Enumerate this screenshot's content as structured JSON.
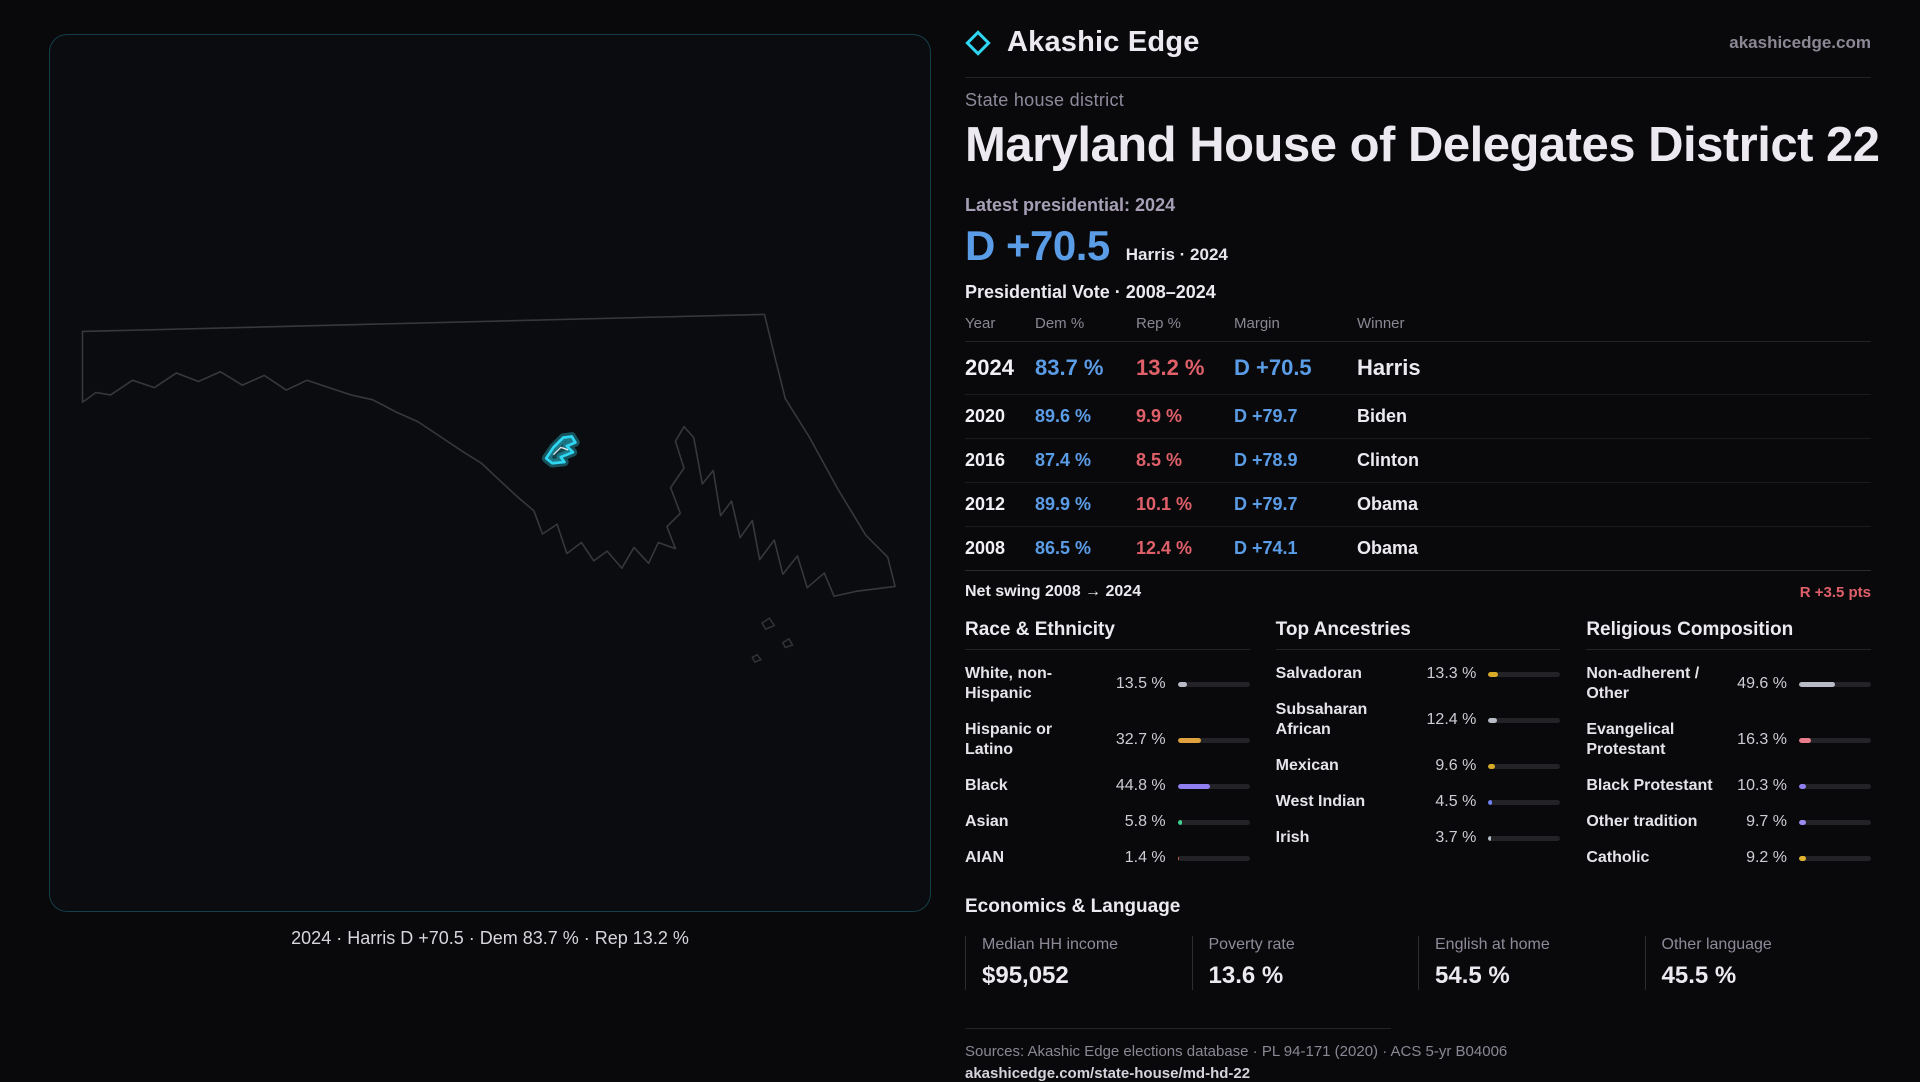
{
  "colors": {
    "accent": "#2fd6f2",
    "dem": "#5b9ce6",
    "rep": "#e0606a"
  },
  "brand": {
    "name": "Akashic Edge",
    "domain": "akashicedge.com"
  },
  "map": {
    "caption": "2024 · Harris D +70.5 · Dem 83.7 % · Rep 13.2 %"
  },
  "page": {
    "kicker": "State house district",
    "title": "Maryland House of Delegates District 22",
    "latest_label": "Latest presidential: 2024",
    "margin_value": "D +70.5",
    "margin_caption": "Harris · 2024",
    "table_title": "Presidential Vote · 2008–2024"
  },
  "vote_table": {
    "headers": [
      "Year",
      "Dem %",
      "Rep %",
      "Margin",
      "Winner"
    ],
    "rows": [
      {
        "year": "2024",
        "dem": "83.7 %",
        "rep": "13.2 %",
        "margin": "D +70.5",
        "winner": "Harris"
      },
      {
        "year": "2020",
        "dem": "89.6 %",
        "rep": "9.9 %",
        "margin": "D +79.7",
        "winner": "Biden"
      },
      {
        "year": "2016",
        "dem": "87.4 %",
        "rep": "8.5 %",
        "margin": "D +78.9",
        "winner": "Clinton"
      },
      {
        "year": "2012",
        "dem": "89.9 %",
        "rep": "10.1 %",
        "margin": "D +79.7",
        "winner": "Obama"
      },
      {
        "year": "2008",
        "dem": "86.5 %",
        "rep": "12.4 %",
        "margin": "D +74.1",
        "winner": "Obama"
      }
    ]
  },
  "net_swing": {
    "label": "Net swing 2008 → 2024",
    "value": "R +3.5 pts"
  },
  "demographics": {
    "race": {
      "title": "Race & Ethnicity",
      "items": [
        {
          "label": "White, non-Hispanic",
          "value": "13.5 %",
          "pct": 13.5,
          "color": "#b9bcc6"
        },
        {
          "label": "Hispanic or Latino",
          "value": "32.7 %",
          "pct": 32.7,
          "color": "#e0a23e"
        },
        {
          "label": "Black",
          "value": "44.8 %",
          "pct": 44.8,
          "color": "#8f7ff0"
        },
        {
          "label": "Asian",
          "value": "5.8 %",
          "pct": 5.8,
          "color": "#3ecf8e"
        },
        {
          "label": "AIAN",
          "value": "1.4 %",
          "pct": 1.4,
          "color": "#c96a4a"
        }
      ]
    },
    "ancestries": {
      "title": "Top Ancestries",
      "items": [
        {
          "label": "Salvadoran",
          "value": "13.3 %",
          "pct": 13.3,
          "color": "#d9a928"
        },
        {
          "label": "Subsaharan African",
          "value": "12.4 %",
          "pct": 12.4,
          "color": "#b8bdc7"
        },
        {
          "label": "Mexican",
          "value": "9.6 %",
          "pct": 9.6,
          "color": "#d9a928"
        },
        {
          "label": "West Indian",
          "value": "4.5 %",
          "pct": 4.5,
          "color": "#6f7ff0"
        },
        {
          "label": "Irish",
          "value": "3.7 %",
          "pct": 3.7,
          "color": "#b8bdc7"
        }
      ]
    },
    "religion": {
      "title": "Religious Composition",
      "items": [
        {
          "label": "Non-adherent / Other",
          "value": "49.6 %",
          "pct": 49.6,
          "color": "#b9bcc6"
        },
        {
          "label": "Evangelical Protestant",
          "value": "16.3 %",
          "pct": 16.3,
          "color": "#e87c8a"
        },
        {
          "label": "Black Protestant",
          "value": "10.3 %",
          "pct": 10.3,
          "color": "#8f7ff0"
        },
        {
          "label": "Other tradition",
          "value": "9.7 %",
          "pct": 9.7,
          "color": "#9b8cf2"
        },
        {
          "label": "Catholic",
          "value": "9.2 %",
          "pct": 9.2,
          "color": "#e3b52e"
        }
      ]
    }
  },
  "economics": {
    "title": "Economics & Language",
    "stats": [
      {
        "label": "Median HH income",
        "value": "$95,052"
      },
      {
        "label": "Poverty rate",
        "value": "13.6 %"
      },
      {
        "label": "English at home",
        "value": "54.5 %"
      },
      {
        "label": "Other language",
        "value": "45.5 %"
      }
    ]
  },
  "footer": {
    "sources": "Sources: Akashic Edge elections database · PL 94-171 (2020) · ACS 5-yr B04006",
    "permalink": "akashicedge.com/state-house/md-hd-22"
  }
}
